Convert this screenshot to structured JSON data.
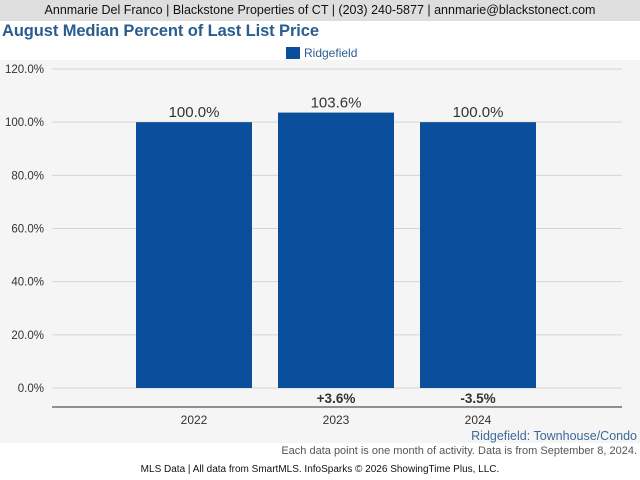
{
  "header": {
    "agent_line": "Annmarie Del Franco | Blackstone Properties of CT | (203) 240-5877 | annmarie@blackstonect.com"
  },
  "title": "August Median Percent of Last List Price",
  "legend": [
    {
      "label": "Ridgefield",
      "color": "#0a4f9c"
    }
  ],
  "chart_data": {
    "type": "bar",
    "title": "August Median Percent of Last List Price",
    "xlabel": "",
    "ylabel": "",
    "categories": [
      "2022",
      "2023",
      "2024"
    ],
    "series": [
      {
        "name": "Ridgefield",
        "values": [
          100.0,
          103.6,
          100.0
        ],
        "value_labels": [
          "100.0%",
          "103.6%",
          "100.0%"
        ],
        "color": "#0a4f9c"
      }
    ],
    "changes": [
      "",
      "+3.6%",
      "-3.5%"
    ],
    "yticks": [
      "0.0%",
      "20.0%",
      "40.0%",
      "60.0%",
      "80.0%",
      "100.0%",
      "120.0%"
    ],
    "ylim": [
      0,
      120
    ],
    "grid": true,
    "legend_position": "top-center"
  },
  "footer": {
    "subtitle": "Ridgefield: Townhouse/Condo",
    "note": "Each data point is one month of activity. Data is from September 8, 2024.",
    "source": "MLS Data | All data from SmartMLS. InfoSparks © 2026 ShowingTime Plus, LLC."
  }
}
